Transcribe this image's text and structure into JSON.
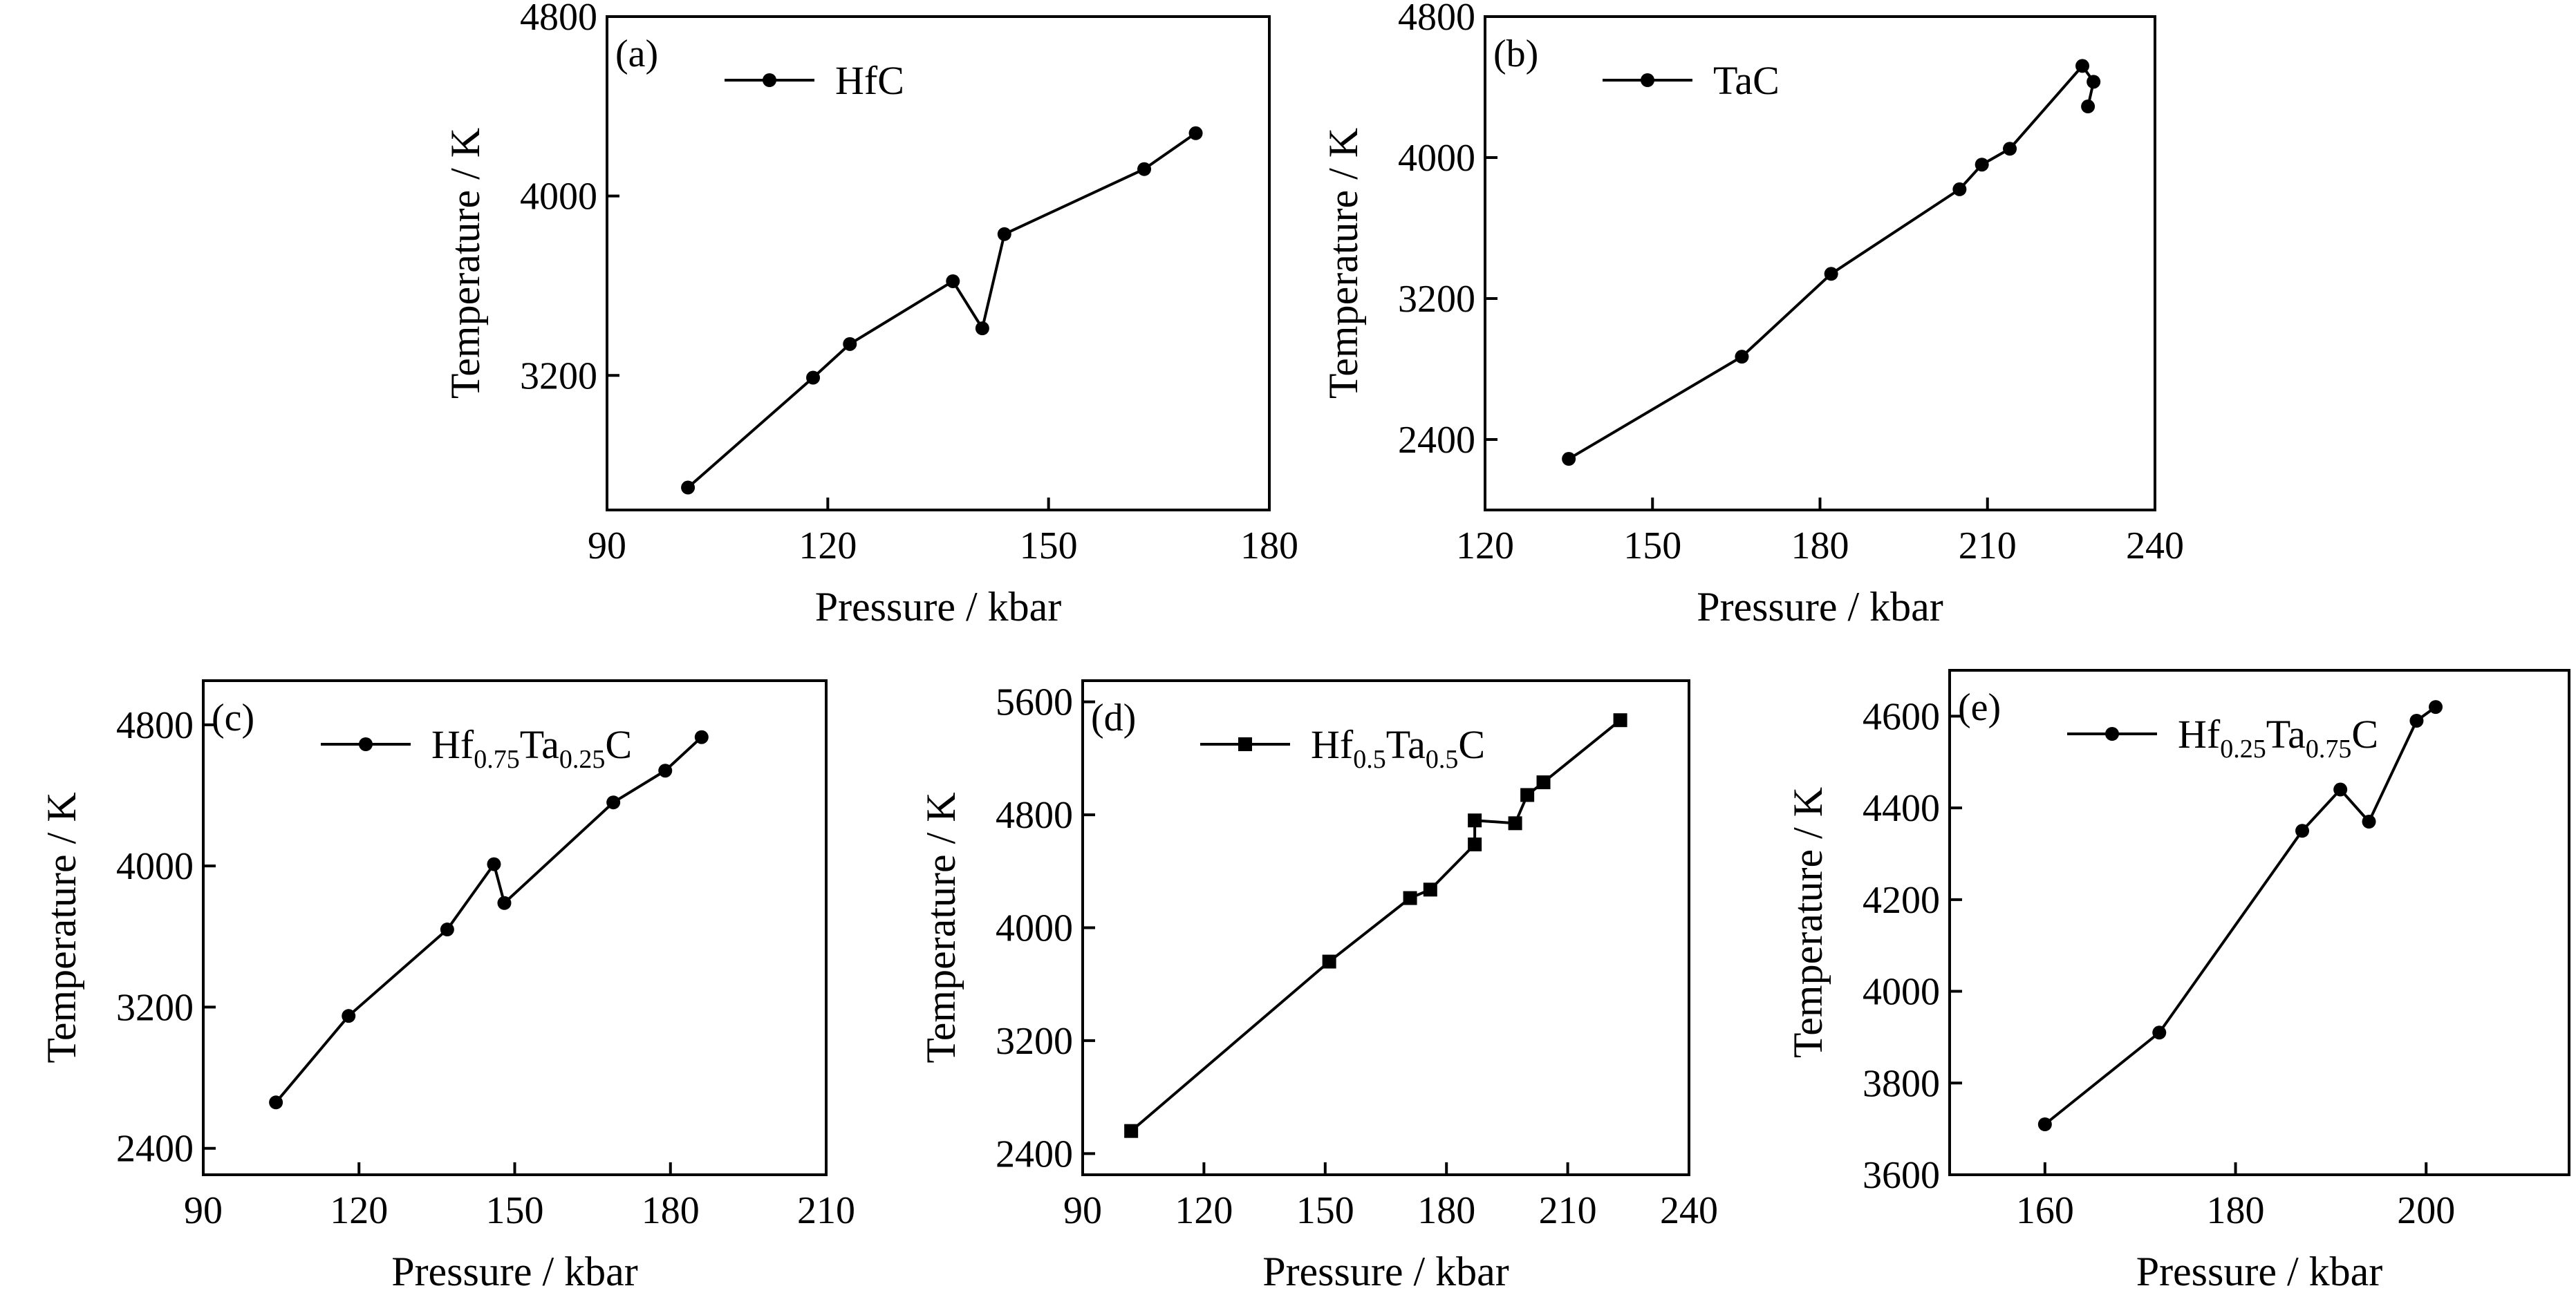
{
  "chart_data": [
    {
      "type": "line",
      "tag": "(a)",
      "legend": {
        "parts": [
          {
            "t": "HfC"
          }
        ]
      },
      "marker": "circle",
      "xlabel": "Pressure / kbar",
      "ylabel": "Temperature / K",
      "xlim": [
        90,
        180
      ],
      "ylim": [
        2600,
        4800
      ],
      "xticks": [
        90,
        120,
        150,
        180
      ],
      "yticks": [
        3200,
        4000,
        4800
      ],
      "series": [
        {
          "x": [
            101,
            118,
            123,
            137,
            141,
            144,
            163,
            170
          ],
          "y": [
            2700,
            3190,
            3340,
            3620,
            3410,
            3830,
            4120,
            4280
          ]
        }
      ]
    },
    {
      "type": "line",
      "tag": "(b)",
      "legend": {
        "parts": [
          {
            "t": "TaC"
          }
        ]
      },
      "marker": "circle",
      "xlabel": "Pressure / kbar",
      "ylabel": "Temperature / K",
      "xlim": [
        120,
        240
      ],
      "ylim": [
        2000,
        4800
      ],
      "xticks": [
        120,
        150,
        180,
        210,
        240
      ],
      "yticks": [
        2400,
        3200,
        4000,
        4800
      ],
      "series": [
        {
          "x": [
            135,
            166,
            182,
            205,
            209,
            214,
            227,
            229,
            228
          ],
          "y": [
            2290,
            2870,
            3340,
            3820,
            3960,
            4050,
            4520,
            4430,
            4290
          ]
        }
      ]
    },
    {
      "type": "line",
      "tag": "(c)",
      "legend": {
        "parts": [
          {
            "t": "Hf"
          },
          {
            "t": "0.75",
            "sub": true
          },
          {
            "t": "Ta"
          },
          {
            "t": "0.25",
            "sub": true
          },
          {
            "t": "C"
          }
        ]
      },
      "marker": "circle",
      "xlabel": "Pressure / kbar",
      "ylabel": "Temperature / K",
      "xlim": [
        90,
        210
      ],
      "ylim": [
        2250,
        5050
      ],
      "xticks": [
        90,
        120,
        150,
        180,
        210
      ],
      "yticks": [
        2400,
        3200,
        4000,
        4800
      ],
      "series": [
        {
          "x": [
            104,
            118,
            137,
            146,
            148,
            169,
            179,
            186
          ],
          "y": [
            2660,
            3150,
            3640,
            4010,
            3790,
            4360,
            4540,
            4730
          ]
        }
      ]
    },
    {
      "type": "line",
      "tag": "(d)",
      "legend": {
        "parts": [
          {
            "t": "Hf"
          },
          {
            "t": "0.5",
            "sub": true
          },
          {
            "t": "Ta"
          },
          {
            "t": "0.5",
            "sub": true
          },
          {
            "t": "C"
          }
        ]
      },
      "marker": "square",
      "xlabel": "Pressure / kbar",
      "ylabel": "Temperature / K",
      "xlim": [
        90,
        240
      ],
      "ylim": [
        2250,
        5750
      ],
      "xticks": [
        90,
        120,
        150,
        180,
        210,
        240
      ],
      "yticks": [
        2400,
        3200,
        4000,
        4800,
        5600
      ],
      "series": [
        {
          "x": [
            102,
            151,
            171,
            176,
            187,
            187,
            197,
            200,
            204,
            223
          ],
          "y": [
            2560,
            3760,
            4210,
            4270,
            4590,
            4760,
            4740,
            4940,
            5030,
            5470
          ]
        }
      ]
    },
    {
      "type": "line",
      "tag": "(e)",
      "legend": {
        "parts": [
          {
            "t": "Hf"
          },
          {
            "t": "0.25",
            "sub": true
          },
          {
            "t": "Ta"
          },
          {
            "t": "0.75",
            "sub": true
          },
          {
            "t": "C"
          }
        ]
      },
      "marker": "circle",
      "xlabel": "Pressure / kbar",
      "ylabel": "Temperature / K",
      "xlim": [
        150,
        215
      ],
      "ylim": [
        3600,
        4700
      ],
      "xticks": [
        160,
        180,
        200
      ],
      "yticks": [
        3600,
        3800,
        4000,
        4200,
        4400,
        4600
      ],
      "series": [
        {
          "x": [
            160,
            172,
            187,
            191,
            194,
            199,
            201
          ],
          "y": [
            3710,
            3910,
            4350,
            4440,
            4370,
            4590,
            4620
          ]
        }
      ]
    }
  ]
}
